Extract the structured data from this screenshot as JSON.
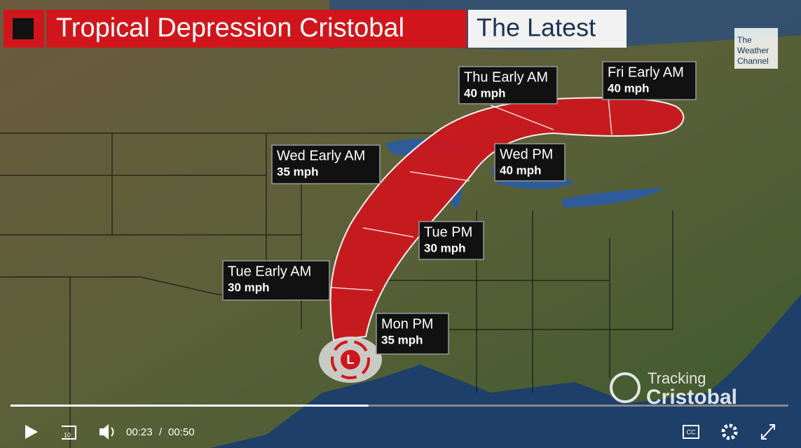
{
  "header": {
    "title": "Tropical Depression Cristobal",
    "subtitle": "The Latest"
  },
  "logo": {
    "lines": [
      "The",
      "Weather",
      "Channel"
    ]
  },
  "forecast_points": [
    {
      "time": "Thu Early AM",
      "speed": "40 mph"
    },
    {
      "time": "Fri Early AM",
      "speed": "40 mph"
    },
    {
      "time": "Wed Early AM",
      "speed": "35 mph"
    },
    {
      "time": "Wed PM",
      "speed": "40 mph"
    },
    {
      "time": "Tue PM",
      "speed": "30 mph"
    },
    {
      "time": "Tue Early AM",
      "speed": "30 mph"
    },
    {
      "time": "Mon PM",
      "speed": "35 mph"
    }
  ],
  "storm_symbol": "L",
  "branding": {
    "line1": "Tracking",
    "line2": "Cristobal"
  },
  "player": {
    "current_time": "00:23",
    "separator": "/",
    "duration": "00:50",
    "rewind_seconds": "10",
    "captions": "CC"
  }
}
